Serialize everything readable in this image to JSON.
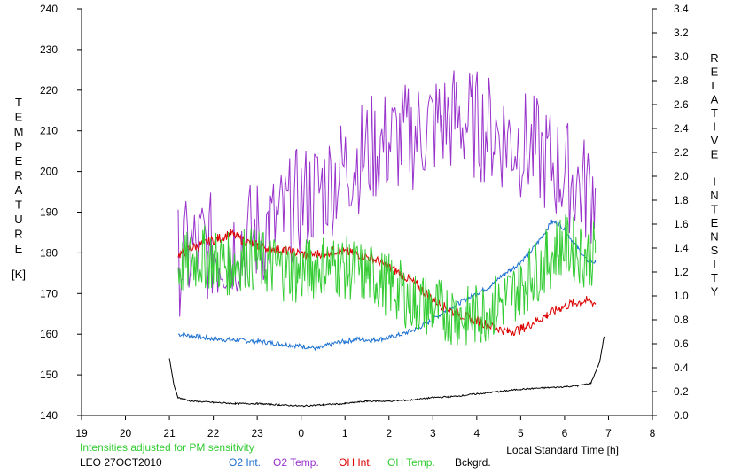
{
  "chart_data": {
    "type": "line",
    "xlabel": "Local Standard Time [h]",
    "ylabel_left": "TEMPERATURE [K]",
    "ylabel_right": "RELATIVE INTENSITY",
    "x_ticks": [
      "19",
      "20",
      "21",
      "22",
      "23",
      "0",
      "1",
      "2",
      "3",
      "4",
      "5",
      "6",
      "7",
      "8"
    ],
    "xlim": [
      19,
      32
    ],
    "ylim_left": [
      140,
      240
    ],
    "ylim_right": [
      0.0,
      3.4
    ],
    "y_left_ticks": [
      140,
      150,
      160,
      170,
      180,
      190,
      200,
      210,
      220,
      230,
      240
    ],
    "y_right_ticks": [
      "0.0",
      "0.2",
      "0.4",
      "0.6",
      "0.8",
      "1.0",
      "1.2",
      "1.4",
      "1.6",
      "1.8",
      "2.0",
      "2.2",
      "2.4",
      "2.6",
      "2.8",
      "3.0",
      "3.2",
      "3.4"
    ],
    "series": [
      {
        "name": "O2 Int.",
        "axis": "right",
        "color": "#1a6fd0",
        "points": [
          [
            21.2,
            0.68
          ],
          [
            21.6,
            0.66
          ],
          [
            22.0,
            0.64
          ],
          [
            22.5,
            0.63
          ],
          [
            23.0,
            0.62
          ],
          [
            23.5,
            0.6
          ],
          [
            24.0,
            0.58
          ],
          [
            24.4,
            0.56
          ],
          [
            24.7,
            0.6
          ],
          [
            25.0,
            0.62
          ],
          [
            25.3,
            0.64
          ],
          [
            25.6,
            0.63
          ],
          [
            26.0,
            0.65
          ],
          [
            26.3,
            0.68
          ],
          [
            26.6,
            0.72
          ],
          [
            27.0,
            0.8
          ],
          [
            27.3,
            0.88
          ],
          [
            27.7,
            0.96
          ],
          [
            28.0,
            1.02
          ],
          [
            28.3,
            1.08
          ],
          [
            28.6,
            1.18
          ],
          [
            28.9,
            1.25
          ],
          [
            29.2,
            1.36
          ],
          [
            29.5,
            1.5
          ],
          [
            29.7,
            1.62
          ],
          [
            29.9,
            1.6
          ],
          [
            30.1,
            1.5
          ],
          [
            30.3,
            1.4
          ],
          [
            30.5,
            1.3
          ],
          [
            30.7,
            1.28
          ]
        ]
      },
      {
        "name": "O2 Temp.",
        "axis": "left",
        "color": "#9933cc",
        "points": [
          [
            21.2,
            178
          ],
          [
            21.5,
            180
          ],
          [
            21.8,
            182
          ],
          [
            22.1,
            180
          ],
          [
            22.4,
            182
          ],
          [
            22.7,
            183
          ],
          [
            23.0,
            185
          ],
          [
            23.3,
            186
          ],
          [
            23.6,
            188
          ],
          [
            23.9,
            192
          ],
          [
            24.2,
            194
          ],
          [
            24.5,
            196
          ],
          [
            24.8,
            199
          ],
          [
            25.1,
            202
          ],
          [
            25.4,
            204
          ],
          [
            25.7,
            206
          ],
          [
            26.0,
            207
          ],
          [
            26.3,
            208
          ],
          [
            26.6,
            209
          ],
          [
            26.9,
            211
          ],
          [
            27.2,
            212
          ],
          [
            27.5,
            213
          ],
          [
            27.8,
            212
          ],
          [
            28.1,
            211
          ],
          [
            28.4,
            210
          ],
          [
            28.7,
            208
          ],
          [
            29.0,
            207
          ],
          [
            29.3,
            205
          ],
          [
            29.6,
            203
          ],
          [
            29.9,
            200
          ],
          [
            30.2,
            198
          ],
          [
            30.5,
            195
          ],
          [
            30.7,
            196
          ]
        ]
      },
      {
        "name": "OH Int.",
        "axis": "right",
        "color": "#dd0000",
        "points": [
          [
            21.2,
            1.34
          ],
          [
            21.5,
            1.4
          ],
          [
            21.8,
            1.44
          ],
          [
            22.1,
            1.48
          ],
          [
            22.4,
            1.52
          ],
          [
            22.7,
            1.46
          ],
          [
            23.0,
            1.42
          ],
          [
            23.3,
            1.4
          ],
          [
            23.6,
            1.38
          ],
          [
            23.9,
            1.36
          ],
          [
            24.2,
            1.34
          ],
          [
            24.5,
            1.36
          ],
          [
            24.8,
            1.38
          ],
          [
            25.1,
            1.36
          ],
          [
            25.4,
            1.34
          ],
          [
            25.7,
            1.3
          ],
          [
            26.0,
            1.24
          ],
          [
            26.3,
            1.18
          ],
          [
            26.6,
            1.1
          ],
          [
            26.9,
            1.0
          ],
          [
            27.2,
            0.92
          ],
          [
            27.5,
            0.86
          ],
          [
            27.8,
            0.82
          ],
          [
            28.1,
            0.78
          ],
          [
            28.4,
            0.74
          ],
          [
            28.7,
            0.7
          ],
          [
            29.0,
            0.72
          ],
          [
            29.3,
            0.78
          ],
          [
            29.6,
            0.84
          ],
          [
            29.9,
            0.9
          ],
          [
            30.2,
            0.94
          ],
          [
            30.5,
            0.96
          ],
          [
            30.7,
            0.94
          ]
        ]
      },
      {
        "name": "OH Temp.",
        "axis": "left",
        "color": "#33cc33",
        "points": [
          [
            21.2,
            176
          ],
          [
            21.5,
            178
          ],
          [
            21.8,
            179
          ],
          [
            22.1,
            178
          ],
          [
            22.4,
            177
          ],
          [
            22.7,
            179
          ],
          [
            23.0,
            178
          ],
          [
            23.3,
            177
          ],
          [
            23.6,
            176
          ],
          [
            23.9,
            175
          ],
          [
            24.2,
            176
          ],
          [
            24.5,
            177
          ],
          [
            24.8,
            177
          ],
          [
            25.1,
            176
          ],
          [
            25.4,
            175
          ],
          [
            25.7,
            174
          ],
          [
            26.0,
            172
          ],
          [
            26.3,
            170
          ],
          [
            26.6,
            168
          ],
          [
            26.9,
            167
          ],
          [
            27.2,
            166
          ],
          [
            27.5,
            165
          ],
          [
            27.8,
            164
          ],
          [
            28.1,
            165
          ],
          [
            28.4,
            167
          ],
          [
            28.7,
            169
          ],
          [
            29.0,
            172
          ],
          [
            29.3,
            175
          ],
          [
            29.6,
            178
          ],
          [
            29.9,
            182
          ],
          [
            30.2,
            181
          ],
          [
            30.5,
            179
          ],
          [
            30.7,
            180
          ]
        ]
      },
      {
        "name": "Bckgrd.",
        "axis": "right",
        "color": "#000000",
        "points": [
          [
            21.0,
            0.48
          ],
          [
            21.1,
            0.26
          ],
          [
            21.2,
            0.15
          ],
          [
            21.5,
            0.12
          ],
          [
            22.0,
            0.11
          ],
          [
            22.5,
            0.1
          ],
          [
            23.0,
            0.1
          ],
          [
            23.5,
            0.09
          ],
          [
            24.0,
            0.08
          ],
          [
            24.5,
            0.09
          ],
          [
            25.0,
            0.1
          ],
          [
            25.5,
            0.12
          ],
          [
            26.0,
            0.12
          ],
          [
            26.5,
            0.13
          ],
          [
            27.0,
            0.15
          ],
          [
            27.5,
            0.16
          ],
          [
            28.0,
            0.18
          ],
          [
            28.5,
            0.2
          ],
          [
            29.0,
            0.22
          ],
          [
            29.5,
            0.23
          ],
          [
            30.0,
            0.24
          ],
          [
            30.3,
            0.25
          ],
          [
            30.6,
            0.27
          ],
          [
            30.8,
            0.45
          ],
          [
            30.9,
            0.66
          ]
        ]
      }
    ],
    "notes": [
      "Intensities adjusted for PM sensitivity",
      "LEO 27OCT2010"
    ]
  },
  "colors": {
    "o2_int": "#1a6fd0",
    "o2_temp": "#9933cc",
    "oh_int": "#dd0000",
    "oh_temp": "#33cc33",
    "bckgrd": "#000000",
    "note": "#33cc33"
  }
}
